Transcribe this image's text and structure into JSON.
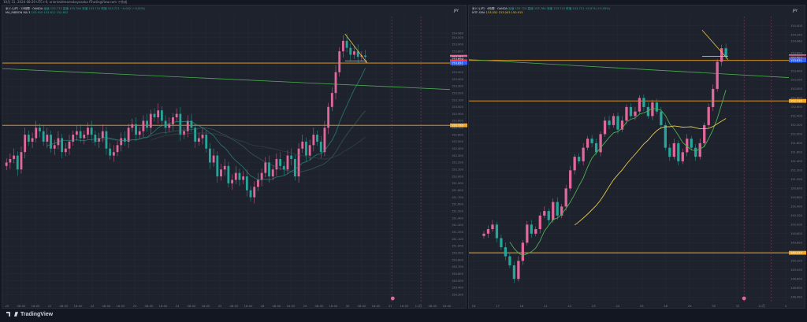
{
  "topbar": {
    "text": "10月 31, 2024 08:29 UTC+9, orientaldreamskayasaka fTradingView.com で作成"
  },
  "footer": {
    "brand": "TradingView"
  },
  "chart_data": [
    {
      "type": "candlestick",
      "pane": "left",
      "symbol": "米ドル/円 · 15時間 · OANDA",
      "legend_values": "始値 153.713  高値 153.764  安値 153.710  終値 153.721  −0.002 (−0.00%)",
      "indicator": "MA_RIBBON MA 3",
      "indicator_values": "153.919  153.811  152.802",
      "currency": "JPY",
      "y_ticks": [
        "154.060",
        "154.000",
        "153.900",
        "153.800",
        "153.721",
        "153.600",
        "153.500",
        "153.400",
        "153.300",
        "153.200",
        "153.100",
        "153.000",
        "152.900",
        "152.800",
        "152.700",
        "152.600",
        "152.500",
        "152.400",
        "152.300",
        "152.200",
        "152.100",
        "152.000",
        "151.900",
        "151.800",
        "151.700",
        "151.600",
        "151.500",
        "151.400",
        "151.300",
        "151.200",
        "151.100",
        "151.000",
        "150.900",
        "150.800",
        "150.700",
        "150.600",
        "150.500",
        "150.400",
        "150.300"
      ],
      "x_ticks": [
        "20",
        "08:00",
        "16:00",
        "21",
        "08:00",
        "16:00",
        "22",
        "08:00",
        "16:00",
        "23",
        "08:00",
        "16:00",
        "24",
        "08:00",
        "16:00",
        "25",
        "08:00",
        "16:00",
        "28",
        "08:00",
        "16:00",
        "29",
        "08:00",
        "16:00",
        "30",
        "08:00",
        "16:00",
        "31",
        "16:00",
        "11月",
        "08:00",
        "16:00"
      ],
      "ylim": [
        150.2,
        154.3
      ],
      "price_labels": [
        "153.721",
        "153.694",
        "153.655",
        "153.631",
        "152.735"
      ],
      "horizontal_levels": [
        153.631,
        152.735
      ],
      "series_close": [
        152.2,
        152.25,
        152.3,
        152.1,
        152.35,
        152.6,
        152.5,
        152.55,
        152.7,
        152.65,
        152.5,
        152.6,
        152.4,
        152.45,
        152.55,
        152.35,
        152.4,
        152.5,
        152.6,
        152.65,
        152.55,
        152.6,
        152.7,
        152.6,
        152.5,
        152.55,
        152.65,
        152.4,
        152.3,
        152.35,
        152.45,
        152.55,
        152.5,
        152.7,
        152.75,
        152.6,
        152.65,
        152.8,
        152.7,
        152.9,
        152.85,
        152.95,
        152.8,
        152.7,
        152.75,
        152.85,
        152.9,
        152.6,
        152.65,
        152.8,
        152.7,
        152.5,
        152.55,
        152.6,
        152.4,
        152.2,
        152.3,
        152.0,
        152.1,
        152.15,
        151.9,
        151.95,
        152.05,
        151.95,
        152.0,
        151.8,
        151.7,
        151.85,
        151.95,
        152.05,
        152.2,
        152.0,
        152.1,
        152.25,
        152.15,
        152.1,
        152.3,
        152.25,
        152.0,
        152.4,
        152.5,
        152.3,
        152.45,
        152.6,
        152.5,
        152.35,
        152.7,
        153.0,
        153.2,
        153.5,
        153.8,
        153.95,
        153.85,
        153.75,
        153.8,
        153.72,
        153.74,
        153.72
      ]
    },
    {
      "type": "candlestick",
      "pane": "right",
      "symbol": "米ドル/円 · 4時間 · OANDA",
      "legend_values": "始値 153.723  高値 153.764  安値 153.710  終値 153.721  +0.075 (+0.05%)",
      "indicator": "MTF-SMA",
      "indicator_values": "153.052  153.003  150.915",
      "currency": "JPY",
      "y_ticks": [
        "154.400",
        "154.200",
        "154.060",
        "153.800",
        "153.600",
        "153.400",
        "153.200",
        "153.000",
        "152.800",
        "152.600",
        "152.400",
        "152.200",
        "152.000",
        "151.800",
        "151.600",
        "151.400",
        "151.200",
        "151.000",
        "150.800",
        "150.600",
        "150.400",
        "150.200",
        "150.000",
        "149.800",
        "149.600",
        "149.400",
        "149.200",
        "149.000",
        "148.800",
        "148.600",
        "148.400"
      ],
      "x_ticks": [
        "16",
        "17",
        "18",
        "21",
        "22",
        "23",
        "24",
        "25",
        "28",
        "29",
        "30",
        "31",
        "11月",
        "4"
      ],
      "ylim": [
        148.3,
        154.6
      ],
      "price_labels": [
        "153.721",
        "153.694",
        "153.655",
        "153.631",
        "152.735",
        "149.377"
      ],
      "horizontal_levels": [
        153.631,
        152.735,
        149.377
      ],
      "series_close": [
        149.8,
        149.9,
        150.0,
        149.7,
        149.5,
        149.3,
        149.1,
        148.8,
        149.2,
        149.6,
        150.0,
        149.8,
        149.9,
        150.2,
        150.3,
        150.1,
        150.5,
        150.2,
        150.4,
        150.8,
        151.2,
        151.5,
        151.4,
        151.7,
        151.9,
        151.8,
        151.6,
        152.0,
        152.3,
        152.2,
        152.4,
        152.1,
        152.3,
        152.6,
        152.4,
        152.5,
        152.8,
        152.6,
        152.4,
        152.7,
        152.5,
        152.2,
        151.7,
        151.5,
        151.8,
        151.4,
        151.6,
        151.9,
        151.7,
        151.5,
        151.8,
        152.2,
        152.6,
        153.0,
        153.6,
        153.9,
        153.72
      ]
    }
  ]
}
